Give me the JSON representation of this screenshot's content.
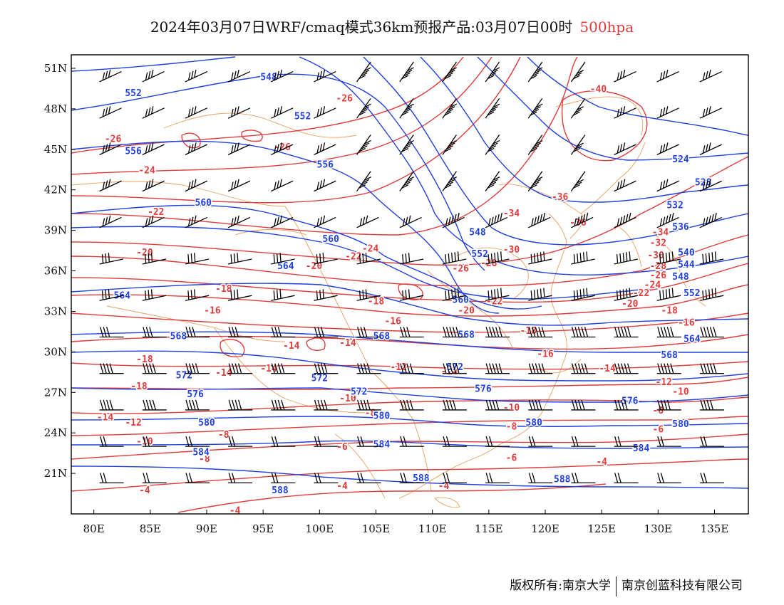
{
  "title": "2024年03月07日WRF/cmaq模式36km预报产品:03月07日00时",
  "level": "500hpa",
  "footer": {
    "left": "版权所有:南京大学",
    "right": "南京创蓝科技有限公司"
  },
  "colors": {
    "temperature": "#e03c3c",
    "geopotential": "#2040e0",
    "coast": "#e8a060",
    "barb": "#000000"
  },
  "axes": {
    "x_ticks": [
      "80E",
      "85E",
      "90E",
      "95E",
      "100E",
      "105E",
      "110E",
      "115E",
      "120E",
      "125E",
      "130E",
      "135E"
    ],
    "y_ticks": [
      "51N",
      "48N",
      "45N",
      "42N",
      "39N",
      "36N",
      "33N",
      "30N",
      "27N",
      "24N",
      "21N"
    ]
  },
  "chart_data": {
    "type": "contour_map",
    "lon_range": [
      78,
      138
    ],
    "lat_range": [
      18,
      52
    ],
    "temperature_labels": [
      {
        "v": "-26",
        "lon": 81.7,
        "lat": 45.8
      },
      {
        "v": "-26",
        "lon": 96.7,
        "lat": 45.2
      },
      {
        "v": "-26",
        "lon": 102.2,
        "lat": 48.8
      },
      {
        "v": "-24",
        "lon": 84.7,
        "lat": 43.5
      },
      {
        "v": "-22",
        "lon": 85.5,
        "lat": 40.4
      },
      {
        "v": "-20",
        "lon": 84.5,
        "lat": 37.4
      },
      {
        "v": "-18",
        "lon": 91.5,
        "lat": 34.7
      },
      {
        "v": "-16",
        "lon": 90.5,
        "lat": 33.1
      },
      {
        "v": "-14",
        "lon": 97.5,
        "lat": 30.5
      },
      {
        "v": "-14",
        "lon": 102.5,
        "lat": 30.7
      },
      {
        "v": "-18",
        "lon": 84.5,
        "lat": 29.5
      },
      {
        "v": "-18",
        "lon": 84,
        "lat": 27.5
      },
      {
        "v": "-14",
        "lon": 91.5,
        "lat": 28.5
      },
      {
        "v": "-14",
        "lon": 95.5,
        "lat": 28.8
      },
      {
        "v": "-12",
        "lon": 83.5,
        "lat": 24.8
      },
      {
        "v": "-14",
        "lon": 81,
        "lat": 25.2
      },
      {
        "v": "-10",
        "lon": 84.5,
        "lat": 23.4
      },
      {
        "v": "-8",
        "lon": 91.5,
        "lat": 23.9
      },
      {
        "v": "-8",
        "lon": 89.8,
        "lat": 22.1
      },
      {
        "v": "-4",
        "lon": 84.5,
        "lat": 19.8
      },
      {
        "v": "-4",
        "lon": 92.5,
        "lat": 18.3
      },
      {
        "v": "-10",
        "lon": 102.5,
        "lat": 26.6
      },
      {
        "v": "-8",
        "lon": 104.5,
        "lat": 25.5
      },
      {
        "v": "-6",
        "lon": 102,
        "lat": 23
      },
      {
        "v": "-4",
        "lon": 102,
        "lat": 20.1
      },
      {
        "v": "-12",
        "lon": 107,
        "lat": 28.9
      },
      {
        "v": "-24",
        "lon": 104.5,
        "lat": 37.7
      },
      {
        "v": "-22",
        "lon": 103,
        "lat": 37.1
      },
      {
        "v": "-20",
        "lon": 99.5,
        "lat": 36.4
      },
      {
        "v": "-18",
        "lon": 105,
        "lat": 33.8
      },
      {
        "v": "-16",
        "lon": 106.5,
        "lat": 32.3
      },
      {
        "v": "-26",
        "lon": 112.5,
        "lat": 36.2
      },
      {
        "v": "-28",
        "lon": 115,
        "lat": 36.6
      },
      {
        "v": "-20",
        "lon": 113,
        "lat": 33.1
      },
      {
        "v": "-22",
        "lon": 115.5,
        "lat": 33.8
      },
      {
        "v": "-30",
        "lon": 117,
        "lat": 37.6
      },
      {
        "v": "-34",
        "lon": 117,
        "lat": 40.3
      },
      {
        "v": "-18",
        "lon": 118.5,
        "lat": 31.6
      },
      {
        "v": "-16",
        "lon": 120,
        "lat": 29.9
      },
      {
        "v": "-14",
        "lon": 111.5,
        "lat": 28.6
      },
      {
        "v": "-10",
        "lon": 117,
        "lat": 25.9
      },
      {
        "v": "-8",
        "lon": 117,
        "lat": 24.5
      },
      {
        "v": "-6",
        "lon": 117,
        "lat": 22.2
      },
      {
        "v": "-4",
        "lon": 111,
        "lat": 20.1
      },
      {
        "v": "-36",
        "lon": 121.3,
        "lat": 41.5
      },
      {
        "v": "-36",
        "lon": 122.9,
        "lat": 39.6
      },
      {
        "v": "-40",
        "lon": 124.7,
        "lat": 49.5
      },
      {
        "v": "-34",
        "lon": 130.2,
        "lat": 38.9
      },
      {
        "v": "-32",
        "lon": 130,
        "lat": 38.1
      },
      {
        "v": "-30",
        "lon": 129.8,
        "lat": 37.2
      },
      {
        "v": "-28",
        "lon": 130,
        "lat": 36.4
      },
      {
        "v": "-26",
        "lon": 130,
        "lat": 35.7
      },
      {
        "v": "-24",
        "lon": 129.5,
        "lat": 35
      },
      {
        "v": "-22",
        "lon": 128.5,
        "lat": 34.4
      },
      {
        "v": "-20",
        "lon": 127.5,
        "lat": 33.6
      },
      {
        "v": "-18",
        "lon": 131,
        "lat": 33.1
      },
      {
        "v": "-16",
        "lon": 132.5,
        "lat": 32.2
      },
      {
        "v": "-14",
        "lon": 125.5,
        "lat": 28.8
      },
      {
        "v": "-12",
        "lon": 130.5,
        "lat": 27.8
      },
      {
        "v": "-10",
        "lon": 132,
        "lat": 27.1
      },
      {
        "v": "-8",
        "lon": 130,
        "lat": 25.7
      },
      {
        "v": "-6",
        "lon": 130,
        "lat": 24.3
      },
      {
        "v": "-4",
        "lon": 125,
        "lat": 21.9
      }
    ],
    "height_labels": [
      {
        "v": "548",
        "lon": 95.5,
        "lat": 50.4
      },
      {
        "v": "552",
        "lon": 83.5,
        "lat": 49.2
      },
      {
        "v": "552",
        "lon": 98.5,
        "lat": 47.5
      },
      {
        "v": "556",
        "lon": 83.5,
        "lat": 44.9
      },
      {
        "v": "556",
        "lon": 100.5,
        "lat": 43.9
      },
      {
        "v": "560",
        "lon": 89.7,
        "lat": 41.1
      },
      {
        "v": "560",
        "lon": 101,
        "lat": 38.4
      },
      {
        "v": "564",
        "lon": 82.5,
        "lat": 34.2
      },
      {
        "v": "564",
        "lon": 97,
        "lat": 36.4
      },
      {
        "v": "568",
        "lon": 87.5,
        "lat": 31.2
      },
      {
        "v": "568",
        "lon": 105.5,
        "lat": 31.2
      },
      {
        "v": "572",
        "lon": 88,
        "lat": 28.3
      },
      {
        "v": "572",
        "lon": 100,
        "lat": 28.1
      },
      {
        "v": "572",
        "lon": 103.5,
        "lat": 27.1
      },
      {
        "v": "576",
        "lon": 89,
        "lat": 26.9
      },
      {
        "v": "576",
        "lon": 114.5,
        "lat": 27.3
      },
      {
        "v": "580",
        "lon": 90,
        "lat": 24.8
      },
      {
        "v": "580",
        "lon": 105.5,
        "lat": 25.3
      },
      {
        "v": "580",
        "lon": 119,
        "lat": 24.8
      },
      {
        "v": "584",
        "lon": 89.5,
        "lat": 22.6
      },
      {
        "v": "584",
        "lon": 105.5,
        "lat": 23.2
      },
      {
        "v": "588",
        "lon": 96.5,
        "lat": 19.8
      },
      {
        "v": "588",
        "lon": 109,
        "lat": 20.7
      },
      {
        "v": "588",
        "lon": 121.5,
        "lat": 20.6
      },
      {
        "v": "548",
        "lon": 114,
        "lat": 38.9
      },
      {
        "v": "552",
        "lon": 114.2,
        "lat": 37.3
      },
      {
        "v": "560",
        "lon": 112.5,
        "lat": 33.9
      },
      {
        "v": "568",
        "lon": 113,
        "lat": 31.3
      },
      {
        "v": "572",
        "lon": 112,
        "lat": 28.9
      },
      {
        "v": "576",
        "lon": 127.5,
        "lat": 26.4
      },
      {
        "v": "580",
        "lon": 132,
        "lat": 24.7
      },
      {
        "v": "584",
        "lon": 128.5,
        "lat": 22.9
      },
      {
        "v": "524",
        "lon": 132,
        "lat": 44.3
      },
      {
        "v": "528",
        "lon": 134,
        "lat": 42.6
      },
      {
        "v": "532",
        "lon": 131.5,
        "lat": 40.9
      },
      {
        "v": "536",
        "lon": 132,
        "lat": 39.3
      },
      {
        "v": "540",
        "lon": 132.5,
        "lat": 37.4
      },
      {
        "v": "544",
        "lon": 132.5,
        "lat": 36.5
      },
      {
        "v": "548",
        "lon": 132,
        "lat": 35.6
      },
      {
        "v": "552",
        "lon": 133,
        "lat": 34.4
      },
      {
        "v": "564",
        "lon": 133,
        "lat": 31.0
      },
      {
        "v": "568",
        "lon": 131,
        "lat": 29.8
      }
    ]
  }
}
